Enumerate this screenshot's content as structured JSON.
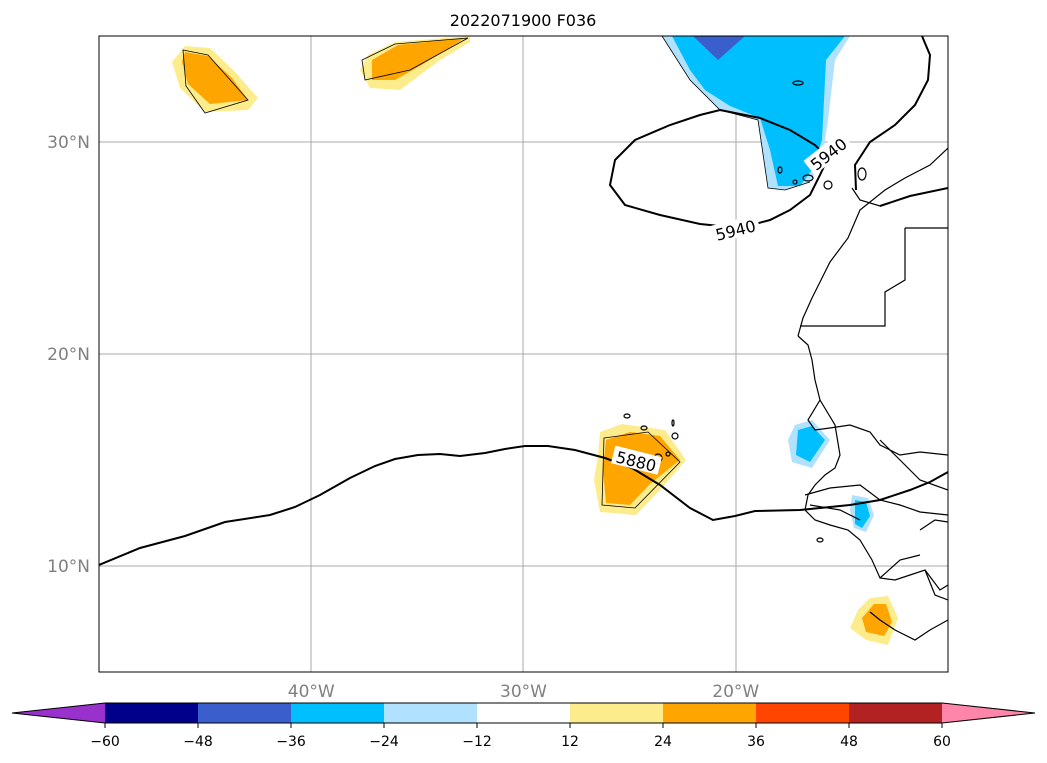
{
  "title": "2022071900 F036",
  "map": {
    "lon_range": [
      -50,
      -10
    ],
    "lat_range": [
      5,
      35
    ],
    "lat_ticks": [
      {
        "value": 30,
        "label": "30°N"
      },
      {
        "value": 20,
        "label": "20°N"
      },
      {
        "value": 10,
        "label": "10°N"
      }
    ],
    "lon_ticks": [
      {
        "value": -40,
        "label": "40°W"
      },
      {
        "value": -30,
        "label": "30°W"
      },
      {
        "value": -20,
        "label": "20°W"
      }
    ],
    "contour_labels": [
      {
        "text": "5940",
        "lon": -20,
        "lat": 25.8,
        "angle": -14
      },
      {
        "text": "5940",
        "lon": -15.6,
        "lat": 29.4,
        "angle": -38
      },
      {
        "text": "5880",
        "lon": -24.7,
        "lat": 14.9,
        "angle": 14
      }
    ]
  },
  "colorbar": {
    "colors": [
      "#9932cc",
      "#00008b",
      "#3a5fcd",
      "#00bfff",
      "#b0e2ff",
      "#ffffff",
      "#fdec8c",
      "#ffa500",
      "#ff4500",
      "#b22222",
      "#ff86aa"
    ],
    "ticks": [
      "−60",
      "−48",
      "−36",
      "−24",
      "−12",
      "12",
      "24",
      "36",
      "48",
      "60"
    ],
    "tick_values": [
      -60,
      -48,
      -36,
      -24,
      -12,
      12,
      24,
      36,
      48,
      60
    ]
  }
}
